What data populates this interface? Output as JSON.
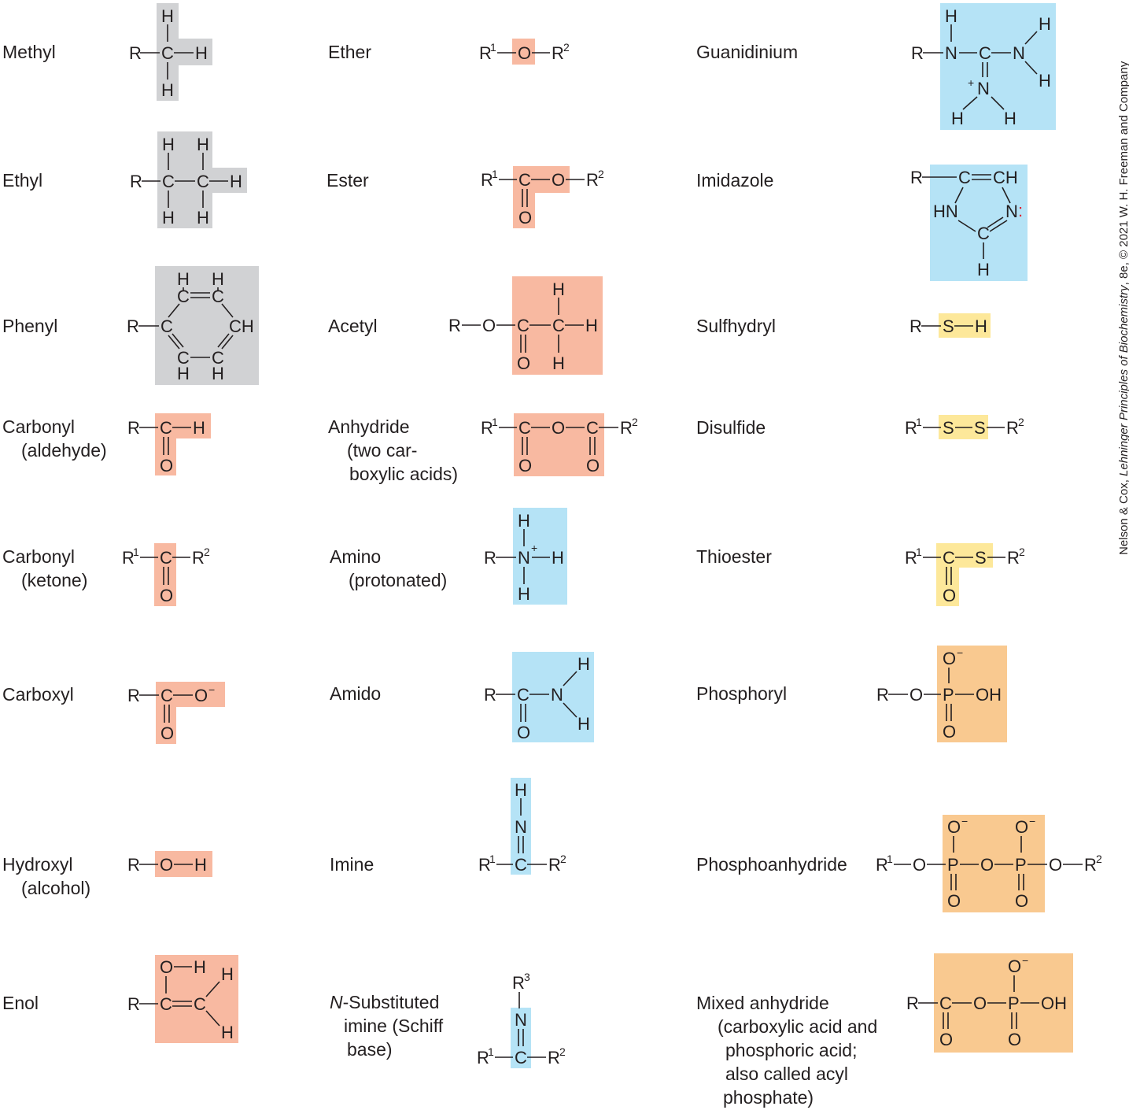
{
  "colors": {
    "gray": "#d1d2d4",
    "salmon": "#f8b9a1",
    "blue": "#b5e3f6",
    "yellow": "#fde89a",
    "orange": "#f9c990",
    "ink": "#231f20",
    "lone_pair": "#e11d2e"
  },
  "groups": [
    {
      "name": "Methyl",
      "sub": ""
    },
    {
      "name": "Ethyl",
      "sub": ""
    },
    {
      "name": "Phenyl",
      "sub": ""
    },
    {
      "name": "Carbonyl",
      "sub": "(aldehyde)"
    },
    {
      "name": "Carbonyl",
      "sub": "(ketone)"
    },
    {
      "name": "Carboxyl",
      "sub": ""
    },
    {
      "name": "Hydroxyl",
      "sub": "(alcohol)"
    },
    {
      "name": "Enol",
      "sub": ""
    },
    {
      "name": "Ether",
      "sub": ""
    },
    {
      "name": "Ester",
      "sub": ""
    },
    {
      "name": "Acetyl",
      "sub": ""
    },
    {
      "name": "Anhydride",
      "sub": "(two car-",
      "sub2": "boxylic acids)"
    },
    {
      "name": "Amino",
      "sub": "(protonated)"
    },
    {
      "name": "Amido",
      "sub": ""
    },
    {
      "name": "Imine",
      "sub": ""
    },
    {
      "name_prefix": "N",
      "name": "-Substituted",
      "sub": "imine (Schiff",
      "sub2": "base)"
    },
    {
      "name": "Guanidinium",
      "sub": ""
    },
    {
      "name": "Imidazole",
      "sub": ""
    },
    {
      "name": "Sulfhydryl",
      "sub": ""
    },
    {
      "name": "Disulfide",
      "sub": ""
    },
    {
      "name": "Thioester",
      "sub": ""
    },
    {
      "name": "Phosphoryl",
      "sub": ""
    },
    {
      "name": "Phosphoanhydride",
      "sub": ""
    },
    {
      "name": "Mixed anhydride",
      "sub": "(carboxylic acid and",
      "sub2": "phosphoric acid;",
      "sub3": "also called acyl",
      "sub4": "phosphate)"
    }
  ],
  "atoms": {
    "R": "R",
    "C": "C",
    "H": "H",
    "O": "O",
    "N": "N",
    "S": "S",
    "P": "P",
    "OH": "OH",
    "CH": "CH",
    "HN": "HN",
    "one": "1",
    "two": "2",
    "three": "3",
    "plus": "+",
    "minus": "−",
    "colon": ":"
  },
  "credit": {
    "authors": "Nelson & Cox, ",
    "title": "Lehninger Principles of Biochemistry",
    "rest": ", 8e, © 2021 W. H. Freeman and Company"
  }
}
